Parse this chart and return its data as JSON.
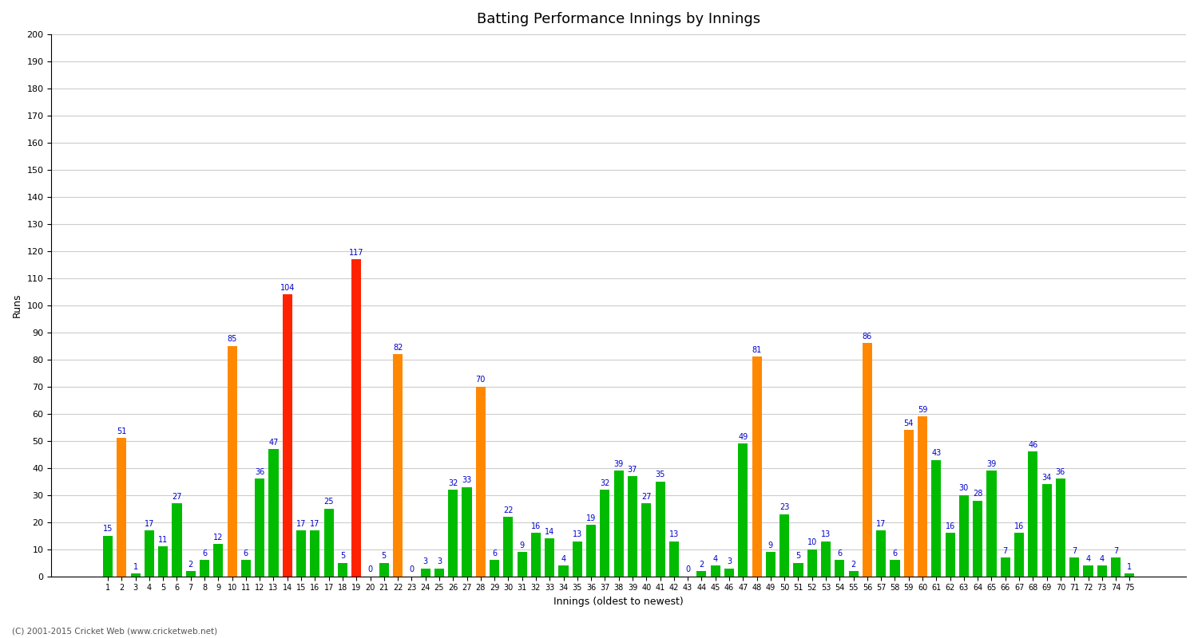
{
  "innings": [
    1,
    2,
    3,
    4,
    5,
    6,
    7,
    8,
    9,
    10,
    11,
    12,
    13,
    14,
    15,
    16,
    17,
    18,
    19,
    20,
    21,
    22,
    23,
    24,
    25,
    26,
    27,
    28,
    29,
    30,
    31,
    32,
    33,
    34,
    35,
    36,
    37,
    38,
    39,
    40,
    41,
    42,
    43,
    44,
    45,
    46,
    47,
    48,
    49,
    50,
    51,
    52,
    53,
    54,
    55,
    56,
    57,
    58,
    59,
    60,
    61,
    62,
    63,
    64,
    65,
    66,
    67,
    68,
    69,
    70,
    71,
    72,
    73,
    74,
    75
  ],
  "values": [
    15,
    51,
    1,
    17,
    11,
    27,
    2,
    6,
    12,
    85,
    6,
    36,
    47,
    104,
    17,
    17,
    25,
    5,
    117,
    0,
    5,
    82,
    0,
    3,
    3,
    32,
    33,
    70,
    6,
    22,
    9,
    16,
    14,
    4,
    13,
    19,
    32,
    39,
    37,
    27,
    35,
    13,
    0,
    2,
    4,
    3,
    49,
    81,
    9,
    23,
    5,
    10,
    13,
    6,
    2,
    86,
    17,
    6,
    54,
    59,
    43,
    16,
    30,
    28,
    39,
    7,
    16,
    46,
    34,
    36,
    7,
    4,
    4,
    7,
    1
  ],
  "colors": [
    "#00bb00",
    "#ff8800",
    "#00bb00",
    "#00bb00",
    "#00bb00",
    "#00bb00",
    "#00bb00",
    "#00bb00",
    "#00bb00",
    "#ff8800",
    "#00bb00",
    "#00bb00",
    "#00bb00",
    "#ff2200",
    "#00bb00",
    "#00bb00",
    "#00bb00",
    "#00bb00",
    "#ff2200",
    "#00bb00",
    "#00bb00",
    "#ff8800",
    "#00bb00",
    "#00bb00",
    "#00bb00",
    "#00bb00",
    "#00bb00",
    "#ff8800",
    "#00bb00",
    "#00bb00",
    "#00bb00",
    "#00bb00",
    "#00bb00",
    "#00bb00",
    "#00bb00",
    "#00bb00",
    "#00bb00",
    "#00bb00",
    "#00bb00",
    "#00bb00",
    "#00bb00",
    "#00bb00",
    "#00bb00",
    "#00bb00",
    "#00bb00",
    "#00bb00",
    "#00bb00",
    "#ff8800",
    "#00bb00",
    "#00bb00",
    "#00bb00",
    "#00bb00",
    "#00bb00",
    "#00bb00",
    "#00bb00",
    "#ff8800",
    "#00bb00",
    "#00bb00",
    "#ff8800",
    "#ff8800",
    "#00bb00",
    "#00bb00",
    "#00bb00",
    "#00bb00",
    "#00bb00",
    "#00bb00",
    "#00bb00",
    "#00bb00",
    "#00bb00",
    "#00bb00",
    "#00bb00",
    "#00bb00",
    "#00bb00",
    "#00bb00",
    "#00bb00"
  ],
  "title": "Batting Performance Innings by Innings",
  "ylabel": "Runs",
  "xlabel": "Innings (oldest to newest)",
  "ylim": [
    0,
    200
  ],
  "yticks": [
    0,
    10,
    20,
    30,
    40,
    50,
    60,
    70,
    80,
    90,
    100,
    110,
    120,
    130,
    140,
    150,
    160,
    170,
    180,
    190,
    200
  ],
  "footnote": "(C) 2001-2015 Cricket Web (www.cricketweb.net)",
  "bg_color": "#ffffff",
  "grid_color": "#cccccc",
  "label_color": "#0000cc",
  "label_fontsize": 7,
  "bar_width": 0.7
}
